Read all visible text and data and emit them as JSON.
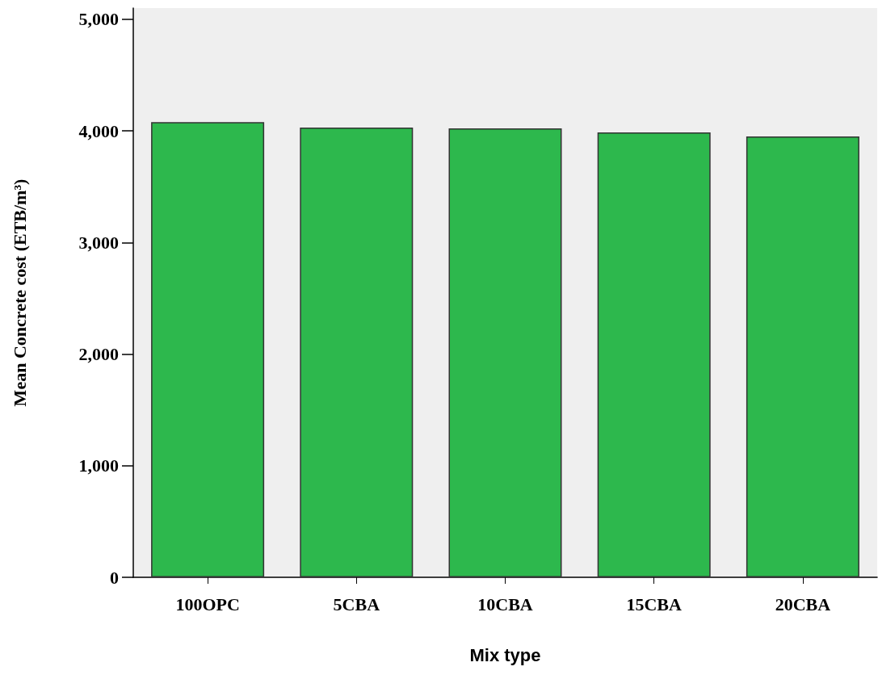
{
  "chart_data": {
    "type": "bar",
    "xlabel": "Mix type",
    "ylabel": "Mean Concrete cost (ETB/m³)",
    "categories": [
      "100OPC",
      "5CBA",
      "10CBA",
      "15CBA",
      "20CBA"
    ],
    "values": [
      4079,
      4029,
      4022,
      3986,
      3949
    ],
    "color": "#2db84d",
    "ylim": [
      0,
      5100
    ],
    "yticks": [
      {
        "value": 0,
        "label": "0"
      },
      {
        "value": 1000,
        "label": "1,000"
      },
      {
        "value": 2000,
        "label": "2,000"
      },
      {
        "value": 3000,
        "label": "3,000"
      },
      {
        "value": 4000,
        "label": "4,000"
      },
      {
        "value": 5000,
        "label": "5,000"
      }
    ],
    "grid": false
  }
}
